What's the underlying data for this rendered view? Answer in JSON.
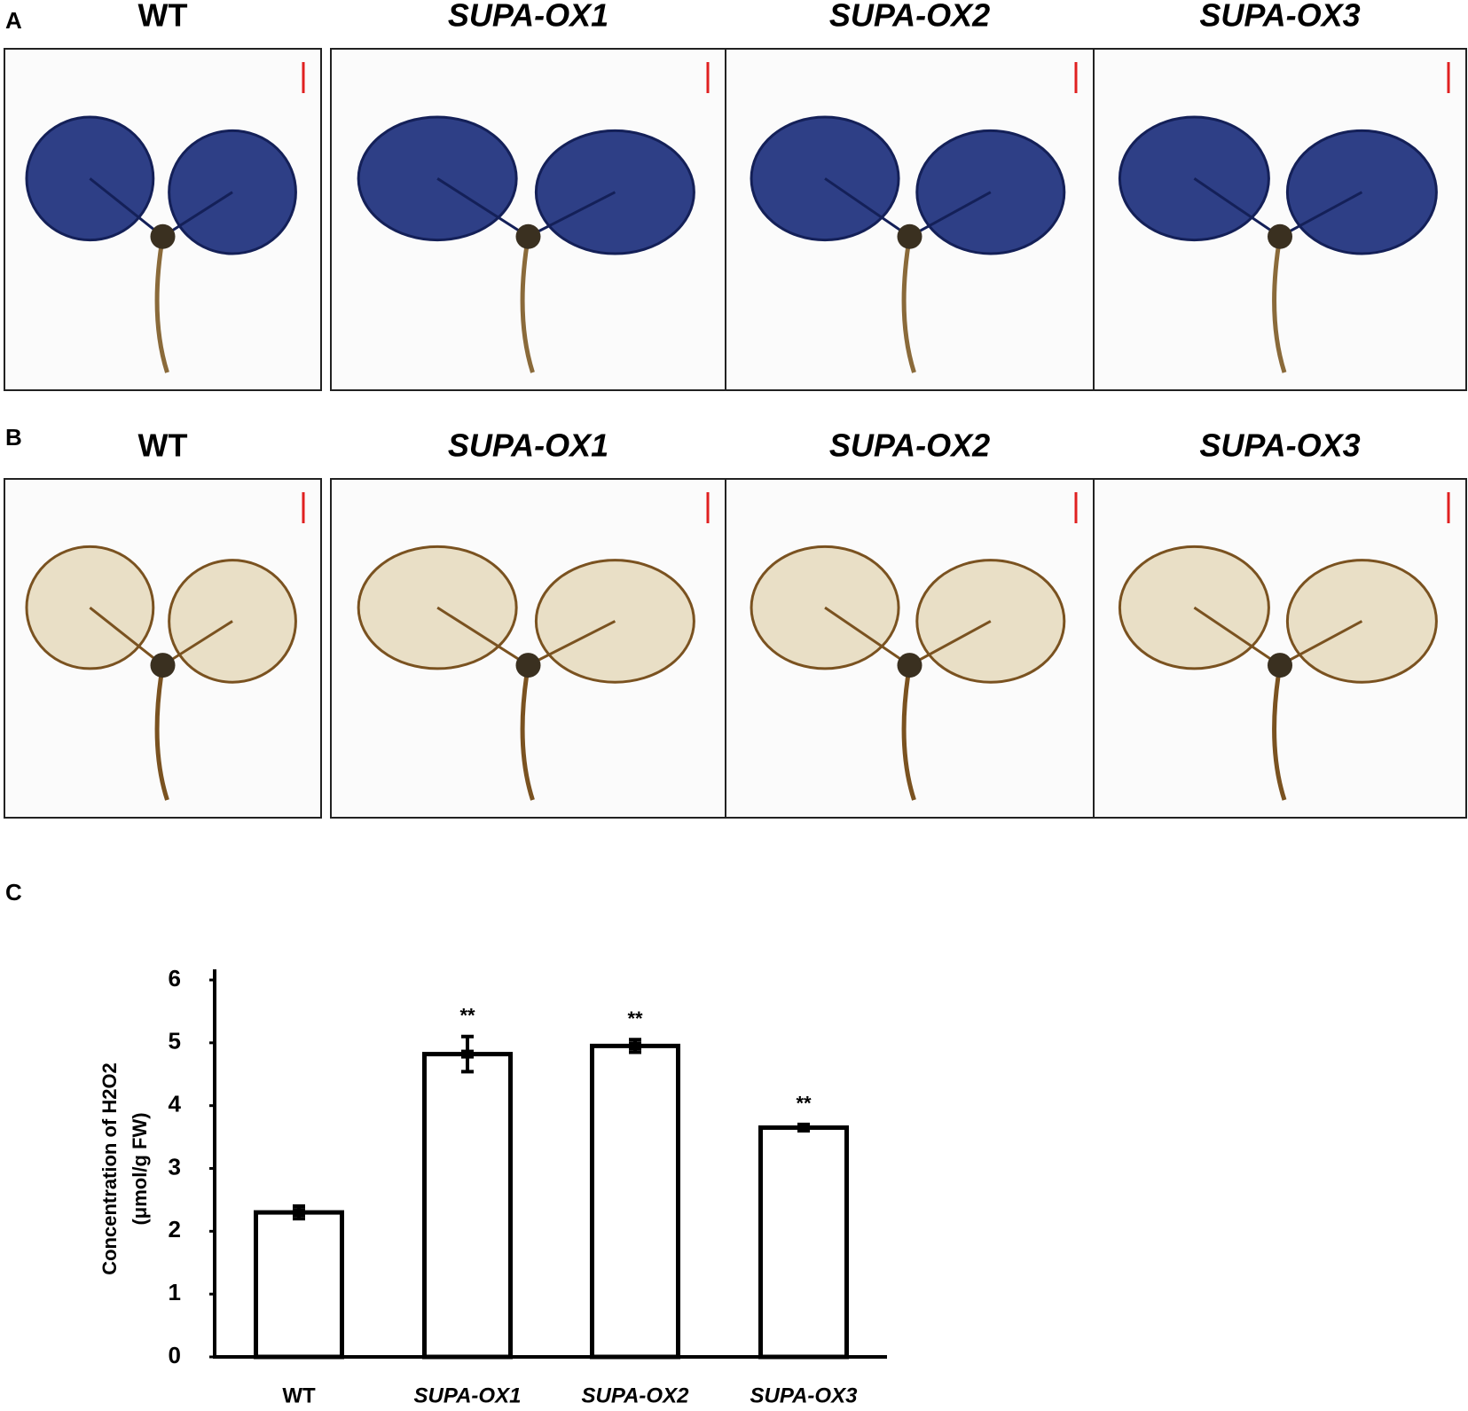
{
  "panels": [
    {
      "label": "A",
      "images": [
        "WT",
        "SUPA-OX1",
        "SUPA-OX2",
        "SUPA-OX3"
      ]
    },
    {
      "label": "B",
      "images": [
        "WT",
        "SUPA-OX1",
        "SUPA-OX2",
        "SUPA-OX3"
      ]
    }
  ],
  "chart_data": {
    "type": "bar",
    "panel_label": "C",
    "ylabel": [
      "Concentration of H2O2",
      "(μmol/g FW)"
    ],
    "categories": [
      "WT",
      "SUPA-OX1",
      "SUPA-OX2",
      "SUPA-OX3"
    ],
    "values": [
      2.3,
      4.82,
      4.95,
      3.65
    ],
    "errors": [
      0.1,
      0.28,
      0.1,
      0.05
    ],
    "value_labels": [
      null,
      "**",
      "**",
      "**"
    ],
    "color": "#ffffff",
    "ylim": [
      0,
      6
    ],
    "yticks": [
      0,
      1,
      2,
      3,
      4,
      5,
      6
    ],
    "grid": false
  }
}
